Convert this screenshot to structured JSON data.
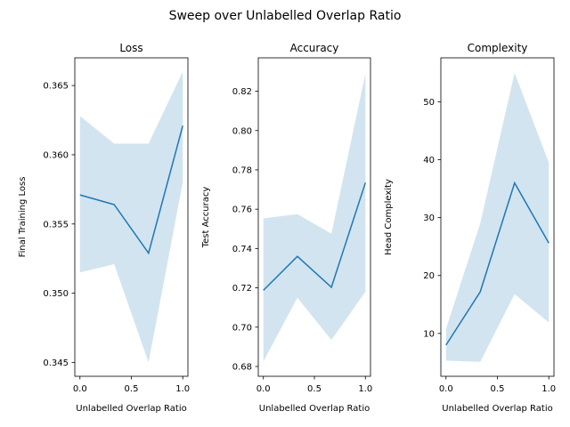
{
  "figure": {
    "suptitle": "Sweep over Unlabelled Overlap Ratio"
  },
  "chart_data": [
    {
      "type": "line",
      "title": "Loss",
      "xlabel": "Unlabelled Overlap Ratio",
      "ylabel": "Final Training Loss",
      "xlim": [
        -0.05,
        1.05
      ],
      "ylim": [
        0.344,
        0.367
      ],
      "xticks": [
        0.0,
        0.5,
        1.0
      ],
      "xtick_labels": [
        "0.0",
        "0.5",
        "1.0"
      ],
      "yticks": [
        0.345,
        0.35,
        0.355,
        0.36,
        0.365
      ],
      "ytick_labels": [
        "0.345",
        "0.350",
        "0.355",
        "0.360",
        "0.365"
      ],
      "x": [
        0.0,
        0.333,
        0.667,
        1.0
      ],
      "y": [
        0.3571,
        0.3564,
        0.3529,
        0.3621
      ],
      "band_lower": [
        0.3515,
        0.3521,
        0.345,
        0.358
      ],
      "band_upper": [
        0.3628,
        0.3608,
        0.3608,
        0.366
      ],
      "line_color": "#1f77b4",
      "band_color": "#1f77b4",
      "grid": false
    },
    {
      "type": "line",
      "title": "Accuracy",
      "xlabel": "Unlabelled Overlap Ratio",
      "ylabel": "Test Accuracy",
      "xlim": [
        -0.05,
        1.05
      ],
      "ylim": [
        0.675,
        0.837
      ],
      "xticks": [
        0.0,
        0.5,
        1.0
      ],
      "xtick_labels": [
        "0.0",
        "0.5",
        "1.0"
      ],
      "yticks": [
        0.68,
        0.7,
        0.72,
        0.74,
        0.76,
        0.78,
        0.8,
        0.82
      ],
      "ytick_labels": [
        "0.68",
        "0.70",
        "0.72",
        "0.74",
        "0.76",
        "0.78",
        "0.80",
        "0.82"
      ],
      "x": [
        0.0,
        0.333,
        0.667,
        1.0
      ],
      "y": [
        0.7187,
        0.736,
        0.7203,
        0.7735
      ],
      "band_lower": [
        0.6825,
        0.715,
        0.6935,
        0.718
      ],
      "band_upper": [
        0.7553,
        0.7575,
        0.7475,
        0.829
      ],
      "line_color": "#1f77b4",
      "band_color": "#1f77b4",
      "grid": false
    },
    {
      "type": "line",
      "title": "Complexity",
      "xlabel": "Unlabelled Overlap Ratio",
      "ylabel": "Head Complexity",
      "xlim": [
        -0.05,
        1.05
      ],
      "ylim": [
        2.6,
        57.6
      ],
      "xticks": [
        0.0,
        0.5,
        1.0
      ],
      "xtick_labels": [
        "0.0",
        "0.5",
        "1.0"
      ],
      "yticks": [
        10,
        20,
        30,
        40,
        50
      ],
      "ytick_labels": [
        "10",
        "20",
        "30",
        "40",
        "50"
      ],
      "x": [
        0.0,
        0.333,
        0.667,
        1.0
      ],
      "y": [
        8.0,
        17.2,
        36.0,
        25.6
      ],
      "band_lower": [
        5.3,
        5.1,
        16.8,
        11.9
      ],
      "band_upper": [
        10.8,
        29.0,
        55.0,
        39.5
      ],
      "line_color": "#1f77b4",
      "band_color": "#1f77b4",
      "grid": false
    }
  ]
}
